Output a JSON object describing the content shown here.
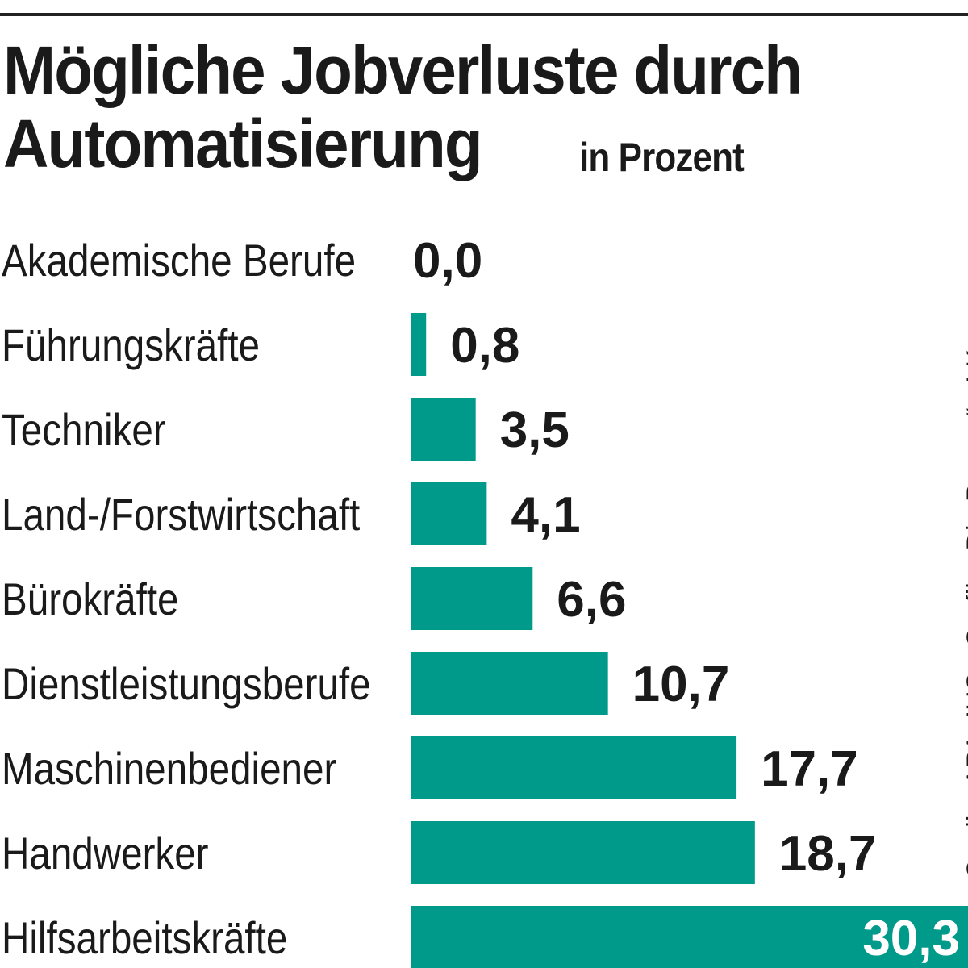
{
  "title_line1": "Mögliche Jobverluste durch",
  "title_line2": "Automatisierung",
  "unit": "in Prozent",
  "source": "Quelle: APA, IHS · Grafik: „Die Presse“ · LK",
  "colors": {
    "bar": "#009a8a",
    "text": "#1a1a1a",
    "value_inside": "#ffffff"
  },
  "chart_data": {
    "type": "bar",
    "orientation": "horizontal",
    "categories": [
      "Akademische Berufe",
      "Führungskräfte",
      "Techniker",
      "Land-/Forstwirtschaft",
      "Bürokräfte",
      "Dienstleistungsberufe",
      "Maschinenbediener",
      "Handwerker",
      "Hilfsarbeitskräfte"
    ],
    "values": [
      0.0,
      0.8,
      3.5,
      4.1,
      6.6,
      10.7,
      17.7,
      18.7,
      30.3
    ],
    "value_labels": [
      "0,0",
      "0,8",
      "3,5",
      "4,1",
      "6,6",
      "10,7",
      "17,7",
      "18,7",
      "30,3"
    ],
    "xlim": [
      0,
      30.3
    ],
    "grid": false,
    "legend": "none"
  }
}
